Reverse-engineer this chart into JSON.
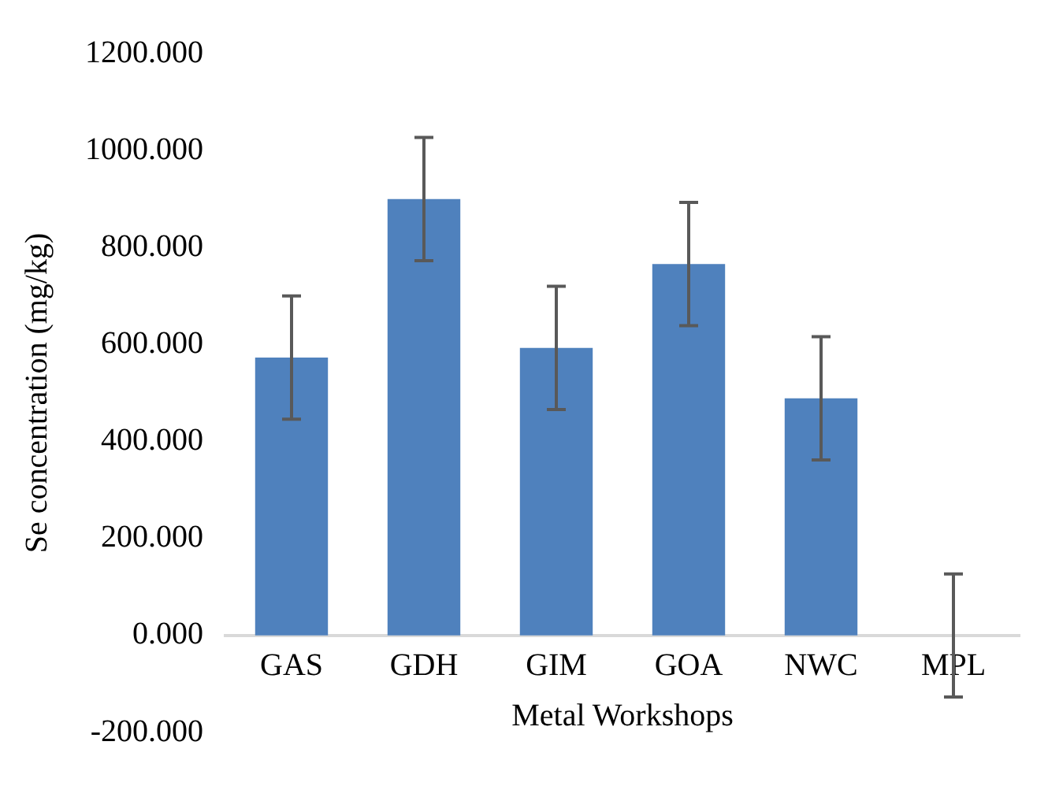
{
  "chart_data": {
    "type": "bar",
    "xlabel": "Metal Workshops",
    "ylabel": "Se concentration (mg/kg)",
    "categories": [
      "GAS",
      "GDH",
      "GIM",
      "GOA",
      "NWC",
      "MPL"
    ],
    "series": [
      {
        "color": "#4f81bd",
        "values": [
          573,
          900,
          593,
          766,
          489,
          0
        ],
        "errors": [
          127,
          127,
          127,
          127,
          127,
          127
        ]
      }
    ],
    "ylim": [
      -200,
      1200
    ],
    "yticks": [
      {
        "value": -200,
        "label": "-200.000"
      },
      {
        "value": 0,
        "label": "0.000"
      },
      {
        "value": 200,
        "label": "200.000"
      },
      {
        "value": 400,
        "label": "400.000"
      },
      {
        "value": 600,
        "label": "600.000"
      },
      {
        "value": 800,
        "label": "800.000"
      },
      {
        "value": 1000,
        "label": "1000.000"
      },
      {
        "value": 1200,
        "label": "1200.000"
      }
    ],
    "grid": false,
    "legend": false
  }
}
